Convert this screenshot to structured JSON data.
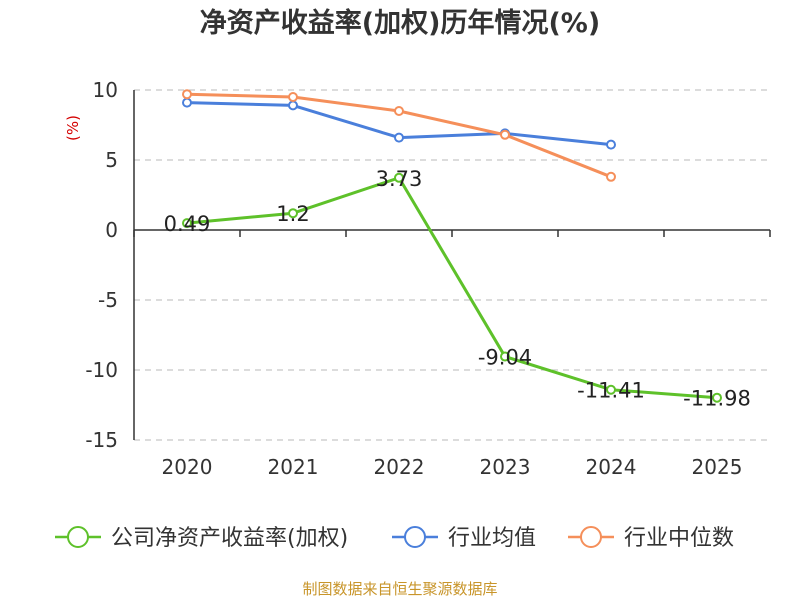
{
  "chart_data": {
    "type": "line",
    "title": "净资产收益率(加权)历年情况(%)",
    "ylabel": "(%)",
    "xlabel": "",
    "categories": [
      "2020",
      "2021",
      "2022",
      "2023",
      "2024",
      "2025"
    ],
    "ylim": [
      -15,
      10
    ],
    "yticks": [
      10,
      5,
      0,
      -5,
      -10,
      -15
    ],
    "grid": true,
    "legend_position": "bottom",
    "series": [
      {
        "name": "公司净资产收益率(加权)",
        "color": "#5ec12a",
        "values": [
          0.49,
          1.2,
          3.73,
          -9.04,
          -11.41,
          -11.98
        ],
        "labels": [
          "0.49",
          "1.2",
          "3.73",
          "-9.04",
          "-11.41",
          "-11.98"
        ]
      },
      {
        "name": "行业均值",
        "color": "#4a7fdb",
        "values": [
          9.1,
          8.9,
          6.6,
          6.9,
          6.1,
          null
        ]
      },
      {
        "name": "行业中位数",
        "color": "#f58f5a",
        "values": [
          9.7,
          9.5,
          8.5,
          6.8,
          3.8,
          null
        ]
      }
    ]
  },
  "source": "制图数据来自恒生聚源数据库"
}
